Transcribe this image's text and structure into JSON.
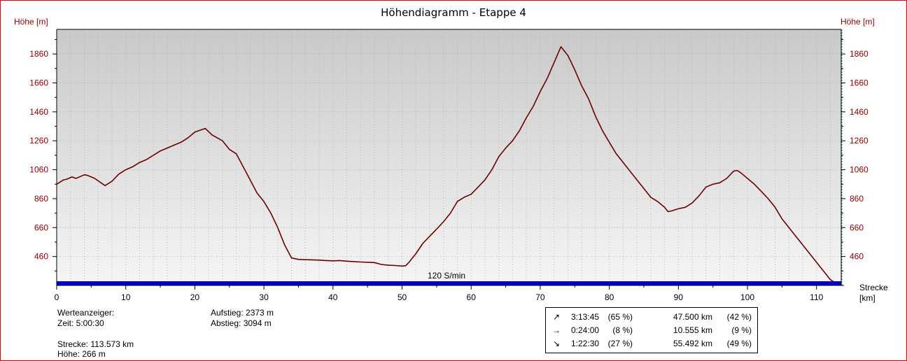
{
  "title": "Höhendiagramm - Etappe 4",
  "colors": {
    "frame": "#e00000",
    "axis_label": "#8b0000",
    "profile_line": "#6b0000",
    "plot_bg_top": "#c9c9c9",
    "plot_bg_bottom": "#f5f5f5",
    "cadence_bar": "#0000cc",
    "right_axis_dash": "#2e8b57"
  },
  "axes": {
    "y_label_left": "Höhe [m]",
    "y_label_right": "Höhe [m]",
    "x_label_line1": "Strecke",
    "x_label_line2": "[km]",
    "cadence_label": "120 S/min"
  },
  "chart_data": {
    "type": "area",
    "title": "Höhendiagramm - Etappe 4",
    "xlabel": "Strecke [km]",
    "ylabel": "Höhe [m]",
    "xlim": [
      0,
      113.573
    ],
    "ylim": [
      260,
      2030
    ],
    "x_ticks": [
      0,
      10,
      20,
      30,
      40,
      50,
      60,
      70,
      80,
      90,
      100,
      110
    ],
    "y_ticks": [
      460,
      660,
      860,
      1060,
      1260,
      1460,
      1660,
      1860
    ],
    "grid": true,
    "legend": "none",
    "series": [
      {
        "x": [
          0,
          1,
          1.5,
          2.2,
          2.8,
          4,
          4.5,
          5.5,
          7,
          8,
          9,
          10,
          11,
          12,
          13,
          14,
          15,
          16,
          17,
          18,
          19,
          20,
          21.5,
          22.5,
          24,
          25,
          26,
          27,
          28,
          29,
          30,
          31,
          32,
          33,
          34,
          35,
          36,
          37,
          38,
          39,
          40,
          41,
          42,
          43,
          44,
          45,
          46,
          47,
          48,
          49,
          50,
          50.5,
          51,
          52,
          53,
          54,
          55,
          56,
          57,
          58,
          59,
          60,
          61,
          62,
          63,
          64,
          65,
          66,
          67,
          68,
          69,
          70,
          71,
          72,
          73,
          74,
          75,
          76,
          77,
          78,
          79,
          80,
          81,
          82,
          83,
          84,
          85,
          86,
          87,
          88,
          88.5,
          89,
          90,
          91,
          92,
          93,
          94,
          95,
          96,
          97,
          98,
          98.5,
          99,
          100,
          101,
          102,
          103,
          104,
          105,
          106,
          107,
          108,
          109,
          110,
          111,
          112,
          113,
          113.573
        ],
        "y": [
          960,
          990,
          995,
          1010,
          1000,
          1025,
          1020,
          1000,
          950,
          980,
          1030,
          1060,
          1080,
          1110,
          1130,
          1160,
          1190,
          1210,
          1230,
          1250,
          1280,
          1320,
          1345,
          1300,
          1260,
          1200,
          1170,
          1080,
          990,
          900,
          840,
          760,
          660,
          540,
          450,
          440,
          438,
          437,
          435,
          432,
          430,
          432,
          428,
          425,
          422,
          420,
          418,
          405,
          400,
          398,
          394,
          396,
          420,
          480,
          550,
          600,
          650,
          700,
          760,
          840,
          870,
          890,
          940,
          990,
          1060,
          1150,
          1210,
          1260,
          1330,
          1420,
          1500,
          1600,
          1690,
          1800,
          1910,
          1850,
          1750,
          1640,
          1550,
          1430,
          1330,
          1250,
          1170,
          1110,
          1050,
          990,
          930,
          870,
          840,
          800,
          770,
          775,
          790,
          800,
          830,
          880,
          940,
          960,
          970,
          1000,
          1050,
          1055,
          1040,
          1000,
          960,
          910,
          860,
          800,
          720,
          660,
          600,
          540,
          480,
          420,
          360,
          300,
          270,
          266
        ]
      }
    ],
    "cadence_bar": {
      "value": 120,
      "unit": "S/min"
    }
  },
  "info": {
    "werteanzeiger_label": "Werteanzeiger:",
    "zeit": "Zeit: 5:00:30",
    "strecke": "Strecke: 113.573 km",
    "hoehe": "Höhe: 266 m",
    "aufstieg": "Aufstieg: 2373 m",
    "abstieg": "Abstieg: 3094 m"
  },
  "stats": [
    {
      "icon": "↗",
      "icon_name": "arrow-up-right-icon",
      "time": "3:13:45",
      "time_pct": "(65 %)",
      "dist": "47.500 km",
      "dist_pct": "(42 %)"
    },
    {
      "icon": "→",
      "icon_name": "arrow-right-icon",
      "time": "0:24:00",
      "time_pct": "(8 %)",
      "dist": "10.555 km",
      "dist_pct": "(9 %)"
    },
    {
      "icon": "↘",
      "icon_name": "arrow-down-right-icon",
      "time": "1:22:30",
      "time_pct": "(27 %)",
      "dist": "55.492 km",
      "dist_pct": "(49 %)"
    }
  ]
}
